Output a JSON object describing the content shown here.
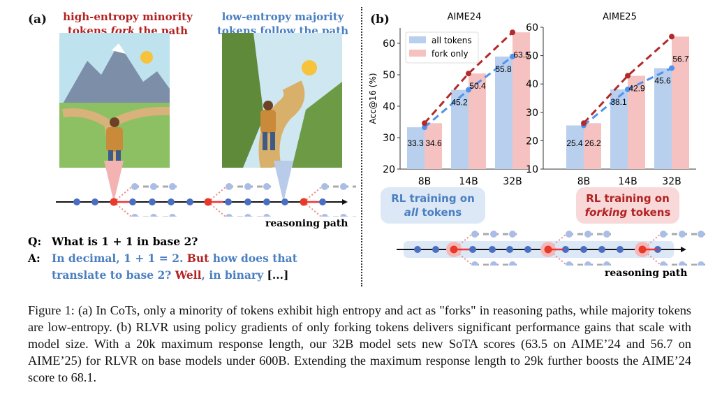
{
  "panel_a": {
    "label": "(a)",
    "left_heading": [
      "high-entropy minority",
      "tokens ",
      "fork",
      " the path"
    ],
    "right_heading": [
      "low-entropy majority",
      "tokens follow the path"
    ],
    "path_label": "reasoning path",
    "q_label": "Q:",
    "question": "What is 1 + 1 in base 2?",
    "a_label": "A:",
    "answer": [
      {
        "t": "In decimal, 1 + 1 = 2. ",
        "c": "blue"
      },
      {
        "t": "But",
        "c": "red"
      },
      {
        "t": " how does that translate to base 2? ",
        "c": "blue"
      },
      {
        "t": "Well",
        "c": "red"
      },
      {
        "t": ", in binary ",
        "c": "blue"
      },
      {
        "t": "[...]",
        "c": "black"
      }
    ]
  },
  "panel_b": {
    "label": "(b)",
    "box_all": [
      "RL training on",
      "all",
      " tokens"
    ],
    "box_fork": [
      "RL training on",
      "forking",
      " tokens"
    ],
    "path_label": "reasoning path"
  },
  "colors": {
    "all_tokens": "#b9cfee",
    "fork_only": "#f5c1c1",
    "all_line": "#4f93ee",
    "fork_line": "#b22a2a"
  },
  "chart_data": [
    {
      "type": "bar",
      "title": "AIME24",
      "ylabel": "Acc@16 (%)",
      "categories": [
        "8B",
        "14B",
        "32B"
      ],
      "ylim": [
        20,
        65
      ],
      "yticks": [
        20,
        30,
        40,
        50,
        60
      ],
      "legend": "top-left",
      "series": [
        {
          "name": "all tokens",
          "values": [
            33.3,
            45.2,
            55.8
          ]
        },
        {
          "name": "fork only",
          "values": [
            34.6,
            50.4,
            63.5
          ]
        }
      ]
    },
    {
      "type": "bar",
      "title": "AIME25",
      "ylabel": "",
      "categories": [
        "8B",
        "14B",
        "32B"
      ],
      "ylim": [
        10,
        60
      ],
      "yticks": [
        10,
        20,
        30,
        40,
        50,
        60
      ],
      "series": [
        {
          "name": "all tokens",
          "values": [
            25.4,
            38.1,
            45.6
          ]
        },
        {
          "name": "fork only",
          "values": [
            26.2,
            42.9,
            56.7
          ]
        }
      ]
    }
  ],
  "caption": "Figure 1: (a) In CoTs, only a minority of tokens exhibit high entropy and act as \"forks\" in reasoning paths, while majority tokens are low-entropy. (b) RLVR using policy gradients of only forking tokens delivers significant performance gains that scale with model size. With a 20k maximum response length, our 32B model sets new SoTA scores (63.5 on AIME’24 and 56.7 on AIME’25) for RLVR on base models under 600B. Extending the maximum response length to 29k further boosts the AIME’24 score to 68.1."
}
